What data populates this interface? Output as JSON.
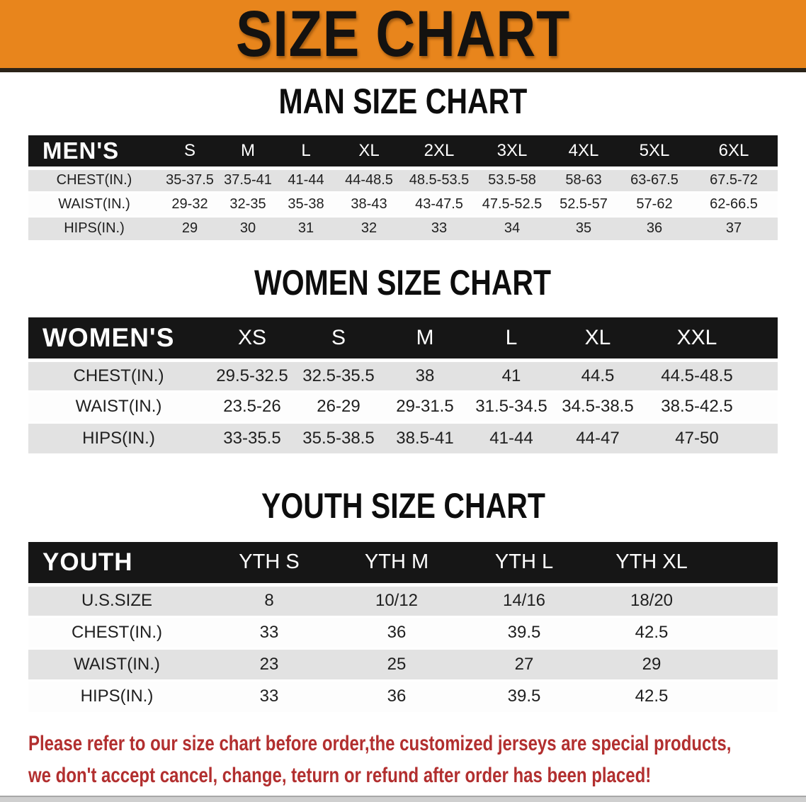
{
  "banner": {
    "title": "SIZE CHART"
  },
  "men": {
    "heading": "MAN SIZE CHART",
    "table": {
      "label": "MEN'S",
      "columns": [
        "S",
        "M",
        "L",
        "XL",
        "2XL",
        "3XL",
        "4XL",
        "5XL",
        "6XL"
      ],
      "rows": [
        {
          "label": "CHEST(IN.)",
          "values": [
            "35-37.5",
            "37.5-41",
            "41-44",
            "44-48.5",
            "48.5-53.5",
            "53.5-58",
            "58-63",
            "63-67.5",
            "67.5-72"
          ]
        },
        {
          "label": "WAIST(IN.)",
          "values": [
            "29-32",
            "32-35",
            "35-38",
            "38-43",
            "43-47.5",
            "47.5-52.5",
            "52.5-57",
            "57-62",
            "62-66.5"
          ]
        },
        {
          "label": "HIPS(IN.)",
          "values": [
            "29",
            "30",
            "31",
            "32",
            "33",
            "34",
            "35",
            "36",
            "37"
          ]
        }
      ]
    }
  },
  "women": {
    "heading": "WOMEN SIZE CHART",
    "table": {
      "label": "WOMEN'S",
      "columns": [
        "XS",
        "S",
        "M",
        "L",
        "XL",
        "XXL"
      ],
      "rows": [
        {
          "label": "CHEST(IN.)",
          "values": [
            "29.5-32.5",
            "32.5-35.5",
            "38",
            "41",
            "44.5",
            "44.5-48.5"
          ]
        },
        {
          "label": "WAIST(IN.)",
          "values": [
            "23.5-26",
            "26-29",
            "29-31.5",
            "31.5-34.5",
            "34.5-38.5",
            "38.5-42.5"
          ]
        },
        {
          "label": "HIPS(IN.)",
          "values": [
            "33-35.5",
            "35.5-38.5",
            "38.5-41",
            "41-44",
            "44-47",
            "47-50"
          ]
        }
      ]
    }
  },
  "youth": {
    "heading": "YOUTH SIZE CHART",
    "table": {
      "label": "YOUTH",
      "columns": [
        "YTH S",
        "YTH M",
        "YTH L",
        "YTH XL"
      ],
      "rows": [
        {
          "label": "U.S.SIZE",
          "values": [
            "8",
            "10/12",
            "14/16",
            "18/20"
          ]
        },
        {
          "label": "CHEST(IN.)",
          "values": [
            "33",
            "36",
            "39.5",
            "42.5"
          ]
        },
        {
          "label": "WAIST(IN.)",
          "values": [
            "23",
            "25",
            "27",
            "29"
          ]
        },
        {
          "label": "HIPS(IN.)",
          "values": [
            "33",
            "36",
            "39.5",
            "42.5"
          ]
        }
      ]
    }
  },
  "disclaimer": {
    "line1": "Please refer to our size chart before order,the customized jerseys are special products,",
    "line2": "we don't accept cancel, change, teturn or refund after order has been placed!"
  },
  "colors": {
    "banner_orange": "#e8851c",
    "header_black": "#161616",
    "row_gray": "#e2e2e2",
    "disclaimer_red": "#b22f2f"
  }
}
